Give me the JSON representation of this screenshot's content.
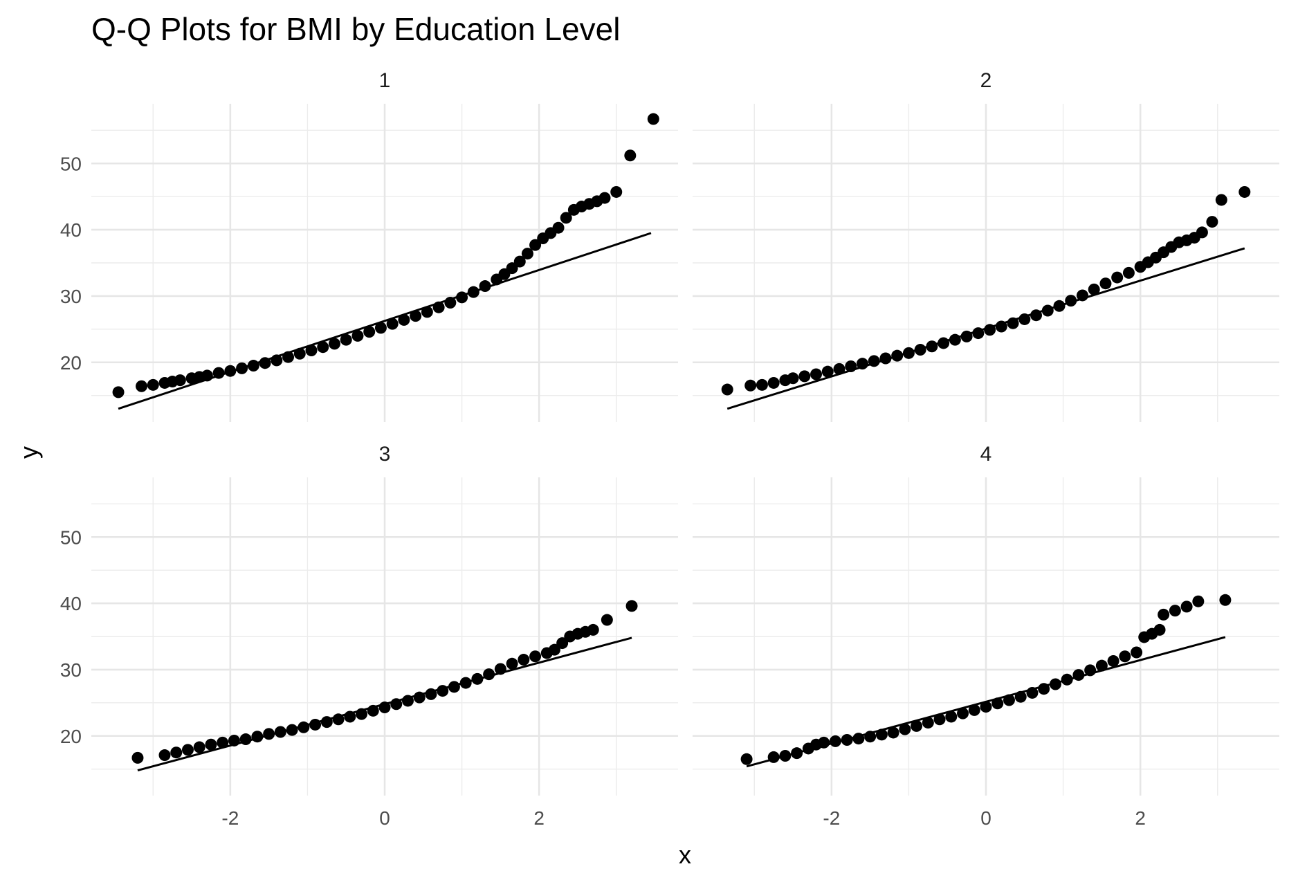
{
  "chart_data": {
    "type": "scatter",
    "title": "Q-Q Plots for BMI by Education Level",
    "xlabel": "x",
    "ylabel": "y",
    "xlim": [
      -3.8,
      3.8
    ],
    "ylim": [
      11,
      59
    ],
    "x_ticks": [
      -2,
      0,
      2
    ],
    "y_ticks": [
      20,
      30,
      40,
      50
    ],
    "x_tick_labels": [
      "-2",
      "0",
      "2"
    ],
    "y_tick_labels": [
      "20",
      "30",
      "40",
      "50"
    ],
    "grid": true,
    "legend": "none",
    "panels": [
      {
        "label": "1",
        "ref_line": {
          "x": [
            -3.45,
            3.45
          ],
          "y": [
            13.0,
            39.5
          ]
        },
        "points": [
          [
            -3.45,
            15.5
          ],
          [
            -3.15,
            16.4
          ],
          [
            -3.0,
            16.6
          ],
          [
            -2.85,
            16.9
          ],
          [
            -2.75,
            17.1
          ],
          [
            -2.65,
            17.3
          ],
          [
            -2.5,
            17.6
          ],
          [
            -2.4,
            17.8
          ],
          [
            -2.3,
            18.0
          ],
          [
            -2.15,
            18.4
          ],
          [
            -2.0,
            18.7
          ],
          [
            -1.85,
            19.1
          ],
          [
            -1.7,
            19.5
          ],
          [
            -1.55,
            19.9
          ],
          [
            -1.4,
            20.3
          ],
          [
            -1.25,
            20.8
          ],
          [
            -1.1,
            21.3
          ],
          [
            -0.95,
            21.8
          ],
          [
            -0.8,
            22.3
          ],
          [
            -0.65,
            22.8
          ],
          [
            -0.5,
            23.4
          ],
          [
            -0.35,
            24.0
          ],
          [
            -0.2,
            24.6
          ],
          [
            -0.05,
            25.2
          ],
          [
            0.1,
            25.8
          ],
          [
            0.25,
            26.4
          ],
          [
            0.4,
            27.0
          ],
          [
            0.55,
            27.6
          ],
          [
            0.7,
            28.3
          ],
          [
            0.85,
            29.0
          ],
          [
            1.0,
            29.8
          ],
          [
            1.15,
            30.6
          ],
          [
            1.3,
            31.5
          ],
          [
            1.45,
            32.5
          ],
          [
            1.55,
            33.3
          ],
          [
            1.65,
            34.2
          ],
          [
            1.75,
            35.2
          ],
          [
            1.85,
            36.4
          ],
          [
            1.95,
            37.7
          ],
          [
            2.05,
            38.7
          ],
          [
            2.15,
            39.5
          ],
          [
            2.25,
            40.3
          ],
          [
            2.35,
            41.8
          ],
          [
            2.45,
            43.0
          ],
          [
            2.55,
            43.5
          ],
          [
            2.65,
            43.9
          ],
          [
            2.75,
            44.3
          ],
          [
            2.85,
            44.8
          ],
          [
            3.0,
            45.7
          ],
          [
            3.18,
            51.2
          ],
          [
            3.48,
            56.7
          ]
        ]
      },
      {
        "label": "2",
        "ref_line": {
          "x": [
            -3.35,
            3.35
          ],
          "y": [
            13.0,
            37.2
          ]
        },
        "points": [
          [
            -3.35,
            15.9
          ],
          [
            -3.05,
            16.5
          ],
          [
            -2.9,
            16.6
          ],
          [
            -2.75,
            16.9
          ],
          [
            -2.6,
            17.3
          ],
          [
            -2.5,
            17.6
          ],
          [
            -2.35,
            17.9
          ],
          [
            -2.2,
            18.2
          ],
          [
            -2.05,
            18.6
          ],
          [
            -1.9,
            19.0
          ],
          [
            -1.75,
            19.4
          ],
          [
            -1.6,
            19.8
          ],
          [
            -1.45,
            20.2
          ],
          [
            -1.3,
            20.6
          ],
          [
            -1.15,
            21.0
          ],
          [
            -1.0,
            21.4
          ],
          [
            -0.85,
            21.9
          ],
          [
            -0.7,
            22.4
          ],
          [
            -0.55,
            22.9
          ],
          [
            -0.4,
            23.4
          ],
          [
            -0.25,
            23.9
          ],
          [
            -0.1,
            24.4
          ],
          [
            0.05,
            24.9
          ],
          [
            0.2,
            25.4
          ],
          [
            0.35,
            25.9
          ],
          [
            0.5,
            26.5
          ],
          [
            0.65,
            27.1
          ],
          [
            0.8,
            27.8
          ],
          [
            0.95,
            28.5
          ],
          [
            1.1,
            29.3
          ],
          [
            1.25,
            30.1
          ],
          [
            1.4,
            31.0
          ],
          [
            1.55,
            31.9
          ],
          [
            1.7,
            32.8
          ],
          [
            1.85,
            33.5
          ],
          [
            2.0,
            34.4
          ],
          [
            2.1,
            35.1
          ],
          [
            2.2,
            35.8
          ],
          [
            2.3,
            36.6
          ],
          [
            2.4,
            37.4
          ],
          [
            2.5,
            38.1
          ],
          [
            2.6,
            38.4
          ],
          [
            2.7,
            38.8
          ],
          [
            2.8,
            39.6
          ],
          [
            2.93,
            41.2
          ],
          [
            3.05,
            44.5
          ],
          [
            3.35,
            45.7
          ]
        ]
      },
      {
        "label": "3",
        "ref_line": {
          "x": [
            -3.2,
            3.2
          ],
          "y": [
            14.8,
            34.8
          ]
        },
        "points": [
          [
            -3.2,
            16.7
          ],
          [
            -2.85,
            17.1
          ],
          [
            -2.7,
            17.5
          ],
          [
            -2.55,
            17.9
          ],
          [
            -2.4,
            18.3
          ],
          [
            -2.25,
            18.7
          ],
          [
            -2.1,
            19.0
          ],
          [
            -1.95,
            19.3
          ],
          [
            -1.8,
            19.5
          ],
          [
            -1.65,
            19.9
          ],
          [
            -1.5,
            20.3
          ],
          [
            -1.35,
            20.6
          ],
          [
            -1.2,
            20.9
          ],
          [
            -1.05,
            21.3
          ],
          [
            -0.9,
            21.7
          ],
          [
            -0.75,
            22.1
          ],
          [
            -0.6,
            22.5
          ],
          [
            -0.45,
            22.9
          ],
          [
            -0.3,
            23.3
          ],
          [
            -0.15,
            23.8
          ],
          [
            0.0,
            24.3
          ],
          [
            0.15,
            24.8
          ],
          [
            0.3,
            25.3
          ],
          [
            0.45,
            25.8
          ],
          [
            0.6,
            26.3
          ],
          [
            0.75,
            26.8
          ],
          [
            0.9,
            27.4
          ],
          [
            1.05,
            28.0
          ],
          [
            1.2,
            28.6
          ],
          [
            1.35,
            29.3
          ],
          [
            1.5,
            30.1
          ],
          [
            1.65,
            30.9
          ],
          [
            1.8,
            31.5
          ],
          [
            1.95,
            32.0
          ],
          [
            2.1,
            32.5
          ],
          [
            2.2,
            33.0
          ],
          [
            2.3,
            34.0
          ],
          [
            2.4,
            35.0
          ],
          [
            2.5,
            35.4
          ],
          [
            2.6,
            35.7
          ],
          [
            2.7,
            36.0
          ],
          [
            2.88,
            37.5
          ],
          [
            3.2,
            39.6
          ]
        ]
      },
      {
        "label": "4",
        "ref_line": {
          "x": [
            -3.1,
            3.1
          ],
          "y": [
            15.4,
            34.9
          ]
        },
        "points": [
          [
            -3.1,
            16.5
          ],
          [
            -2.75,
            16.8
          ],
          [
            -2.6,
            17.0
          ],
          [
            -2.45,
            17.4
          ],
          [
            -2.3,
            18.1
          ],
          [
            -2.2,
            18.7
          ],
          [
            -2.1,
            19.0
          ],
          [
            -1.95,
            19.2
          ],
          [
            -1.8,
            19.4
          ],
          [
            -1.65,
            19.6
          ],
          [
            -1.5,
            19.9
          ],
          [
            -1.35,
            20.2
          ],
          [
            -1.2,
            20.5
          ],
          [
            -1.05,
            21.0
          ],
          [
            -0.9,
            21.5
          ],
          [
            -0.75,
            22.0
          ],
          [
            -0.6,
            22.5
          ],
          [
            -0.45,
            22.9
          ],
          [
            -0.3,
            23.4
          ],
          [
            -0.15,
            23.9
          ],
          [
            0.0,
            24.4
          ],
          [
            0.15,
            24.9
          ],
          [
            0.3,
            25.4
          ],
          [
            0.45,
            25.9
          ],
          [
            0.6,
            26.5
          ],
          [
            0.75,
            27.1
          ],
          [
            0.9,
            27.8
          ],
          [
            1.05,
            28.5
          ],
          [
            1.2,
            29.2
          ],
          [
            1.35,
            29.9
          ],
          [
            1.5,
            30.6
          ],
          [
            1.65,
            31.3
          ],
          [
            1.8,
            32.0
          ],
          [
            1.95,
            32.6
          ],
          [
            2.05,
            34.9
          ],
          [
            2.15,
            35.4
          ],
          [
            2.25,
            36.0
          ],
          [
            2.3,
            38.3
          ],
          [
            2.45,
            38.9
          ],
          [
            2.6,
            39.5
          ],
          [
            2.75,
            40.3
          ],
          [
            3.1,
            40.5
          ]
        ]
      }
    ]
  }
}
